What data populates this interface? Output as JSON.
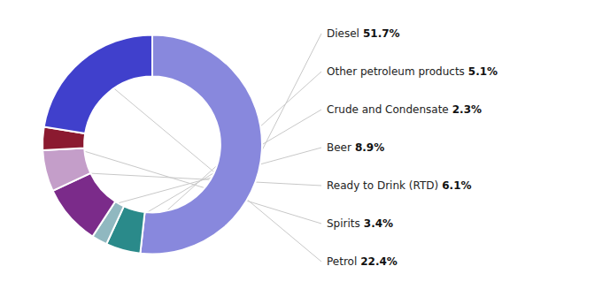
{
  "chart_data": {
    "type": "donut",
    "categories": [
      "Diesel",
      "Other petroleum products",
      "Crude and Condensate",
      "Beer",
      "Ready to Drink (RTD)",
      "Spirits",
      "Petrol"
    ],
    "values": [
      51.7,
      5.1,
      2.3,
      8.9,
      6.1,
      3.4,
      22.4
    ],
    "value_labels": [
      "51.7%",
      "5.1%",
      "2.3%",
      "8.9%",
      "6.1%",
      "3.4%",
      "22.4%"
    ],
    "colors": [
      "#8888dd",
      "#2a8a8a",
      "#90b8c0",
      "#7b2b8a",
      "#c49ec9",
      "#8b1a30",
      "#4040cc"
    ]
  }
}
